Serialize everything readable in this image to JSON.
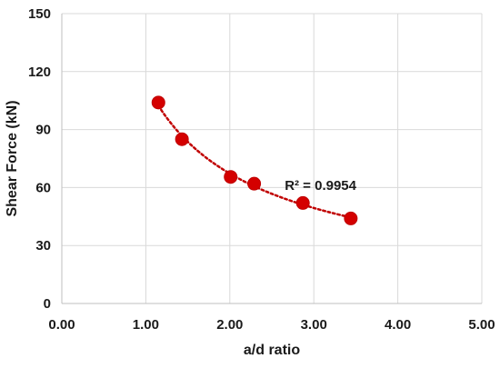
{
  "chart_data": {
    "type": "scatter",
    "xlabel": "a/d ratio",
    "ylabel": "Shear Force (kN)",
    "xlim": [
      0,
      5
    ],
    "ylim": [
      0,
      150
    ],
    "xticks": [
      0,
      1,
      2,
      3,
      4,
      5
    ],
    "xtick_labels": [
      "0.00",
      "1.00",
      "2.00",
      "3.00",
      "4.00",
      "5.00"
    ],
    "yticks": [
      0,
      30,
      60,
      90,
      120,
      150
    ],
    "ytick_labels": [
      "0",
      "30",
      "60",
      "90",
      "120",
      "150"
    ],
    "grid": true,
    "series": [
      {
        "x": [
          1.15,
          1.43,
          2.01,
          2.29,
          2.87,
          3.44
        ],
        "y": [
          104,
          85,
          65.5,
          62,
          52,
          44
        ],
        "marker_color": "#d40000",
        "trendline": {
          "type": "power",
          "style": "dotted",
          "color": "#c00000"
        }
      }
    ],
    "annotations": [
      {
        "text": "R² = 0.9954",
        "x": 2.87,
        "y": 62
      }
    ]
  }
}
